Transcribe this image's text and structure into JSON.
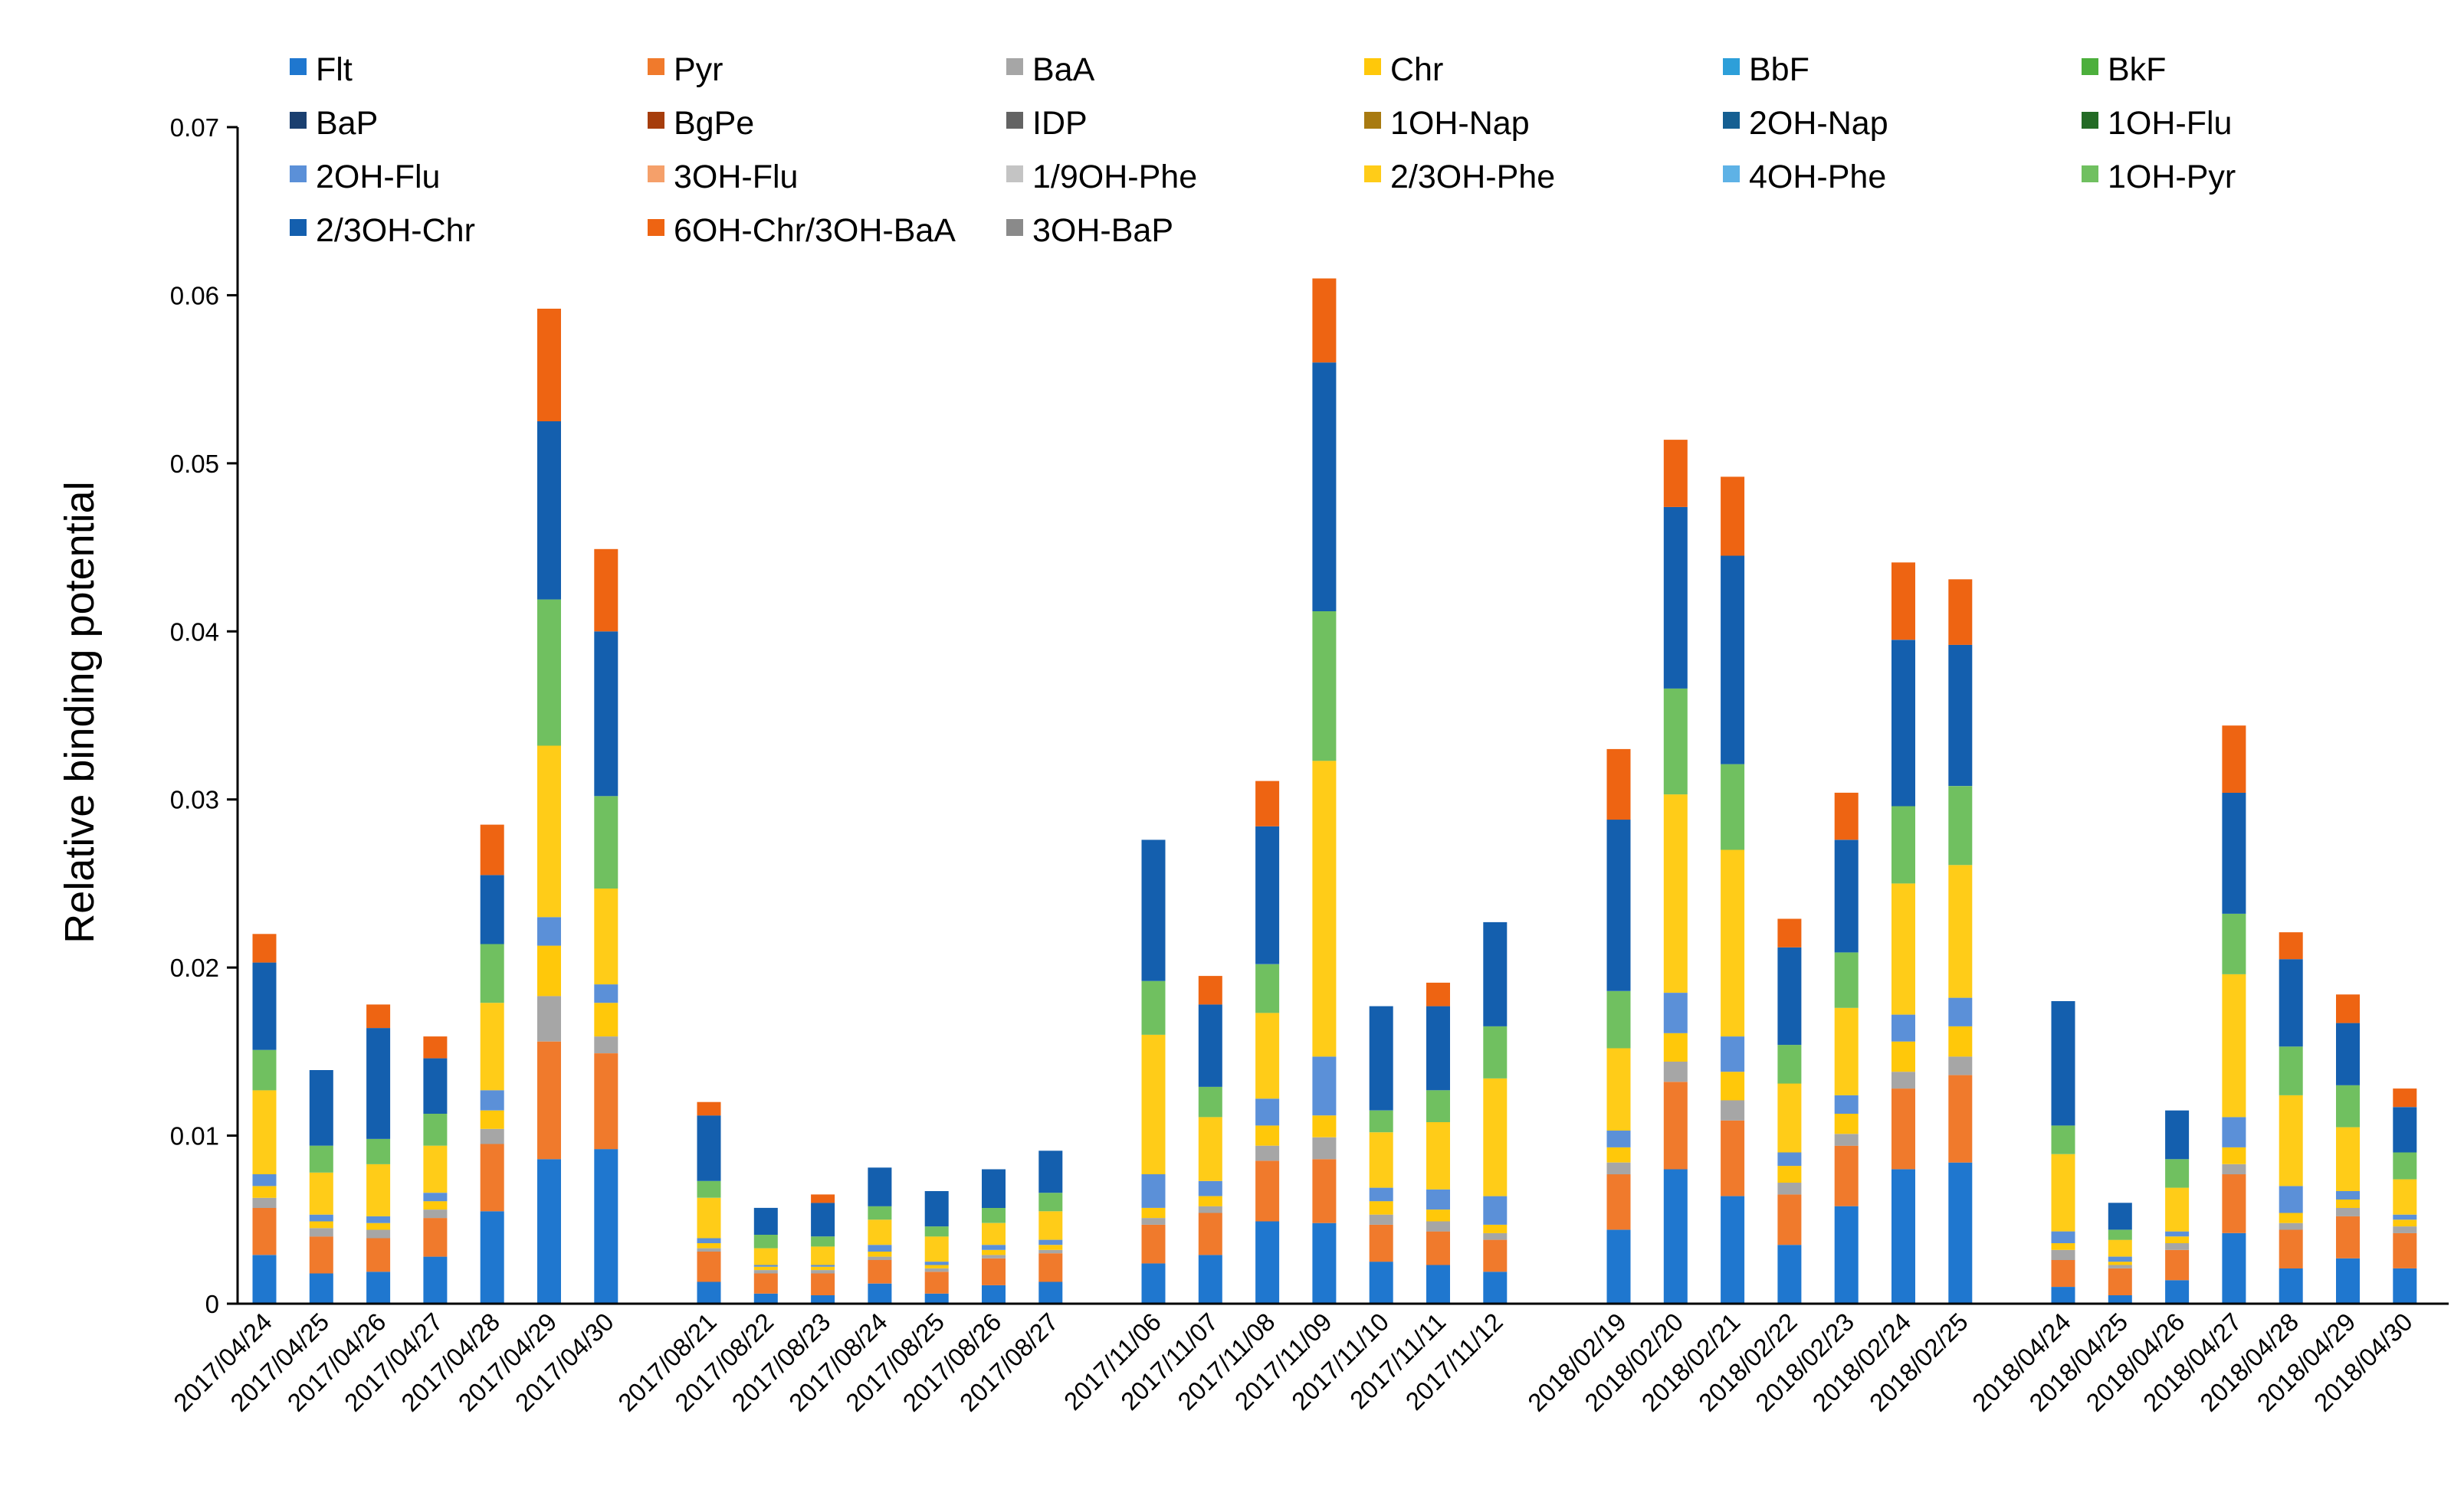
{
  "chart_data": {
    "type": "bar",
    "stacked": true,
    "title": "",
    "xlabel": "",
    "ylabel": "Relative binding potential",
    "ylim": [
      0,
      0.07
    ],
    "yticks": [
      "0",
      "0.01",
      "0.02",
      "0.03",
      "0.04",
      "0.05",
      "0.06",
      "0.07"
    ],
    "grid": false,
    "legend_position": "top",
    "colors": {
      "Flt": "#1f77cf",
      "Pyr": "#f07a2c",
      "BaA": "#a6a6a6",
      "Chr": "#ffc80a",
      "BbF": "#2d9fd9",
      "BkF": "#4caf3c",
      "BaP": "#1a3f70",
      "BgPe": "#a63d0c",
      "IDP": "#636363",
      "1OH-Nap": "#a87a10",
      "2OH-Nap": "#155f92",
      "1OH-Flu": "#236b25",
      "2OH-Flu": "#5b90d8",
      "3OH-Flu": "#f5a06a",
      "1/9OH-Phe": "#c4c4c4",
      "2/3OH-Phe": "#ffcc18",
      "4OH-Phe": "#5eb2e6",
      "1OH-Pyr": "#70c060",
      "2/3OH-Chr": "#145fae",
      "6OH-Chr/3OH-BaA": "#ee6412",
      "3OH-BaP": "#8a8a8a"
    },
    "legend": [
      "Flt",
      "Pyr",
      "BaA",
      "Chr",
      "BbF",
      "BkF",
      "BaP",
      "BgPe",
      "IDP",
      "1OH-Nap",
      "2OH-Nap",
      "1OH-Flu",
      "2OH-Flu",
      "3OH-Flu",
      "1/9OH-Phe",
      "2/3OH-Phe",
      "4OH-Phe",
      "1OH-Pyr",
      "2/3OH-Chr",
      "6OH-Chr/3OH-BaA",
      "3OH-BaP"
    ],
    "groups": [
      {
        "categories": [
          "2017/04/24",
          "2017/04/25",
          "2017/04/26",
          "2017/04/27",
          "2017/04/28",
          "2017/04/29",
          "2017/04/30"
        ]
      },
      {
        "categories": [
          "2017/08/21",
          "2017/08/22",
          "2017/08/23",
          "2017/08/24",
          "2017/08/25",
          "2017/08/26",
          "2017/08/27"
        ]
      },
      {
        "categories": [
          "2017/11/06",
          "2017/11/07",
          "2017/11/08",
          "2017/11/09",
          "2017/11/10",
          "2017/11/11",
          "2017/11/12"
        ]
      },
      {
        "categories": [
          "2018/02/19",
          "2018/02/20",
          "2018/02/21",
          "2018/02/22",
          "2018/02/23",
          "2018/02/24",
          "2018/02/25"
        ]
      },
      {
        "categories": [
          "2018/04/24",
          "2018/04/25",
          "2018/04/26",
          "2018/04/27",
          "2018/04/28",
          "2018/04/29",
          "2018/04/30"
        ]
      }
    ],
    "series": [
      {
        "name": "Flt",
        "values": [
          0.0029,
          0.0018,
          0.0019,
          0.0028,
          0.0055,
          0.0086,
          0.0092,
          0.0013,
          0.0006,
          0.0005,
          0.0012,
          0.0006,
          0.0011,
          0.0013,
          0.0024,
          0.0029,
          0.0049,
          0.0048,
          0.0025,
          0.0023,
          0.0019,
          0.0044,
          0.008,
          0.0064,
          0.0035,
          0.0058,
          0.008,
          0.0084,
          0.001,
          0.0005,
          0.0014,
          0.0042,
          0.0021,
          0.0027,
          0.0021
        ]
      },
      {
        "name": "Pyr",
        "values": [
          0.0028,
          0.0022,
          0.002,
          0.0023,
          0.004,
          0.007,
          0.0057,
          0.0018,
          0.0012,
          0.0013,
          0.0014,
          0.0013,
          0.0016,
          0.0017,
          0.0023,
          0.0025,
          0.0036,
          0.0038,
          0.0022,
          0.002,
          0.0019,
          0.0033,
          0.0052,
          0.0045,
          0.003,
          0.0036,
          0.0048,
          0.0052,
          0.0016,
          0.0016,
          0.0018,
          0.0035,
          0.0023,
          0.0025,
          0.0021
        ]
      },
      {
        "name": "BaA",
        "values": [
          0.0006,
          0.0005,
          0.0005,
          0.0005,
          0.0009,
          0.0027,
          0.001,
          0.0002,
          0.0002,
          0.0002,
          0.0002,
          0.0002,
          0.0002,
          0.0002,
          0.0004,
          0.0004,
          0.0009,
          0.0013,
          0.0006,
          0.0006,
          0.0004,
          0.0007,
          0.0012,
          0.0012,
          0.0007,
          0.0007,
          0.001,
          0.0011,
          0.0006,
          0.0002,
          0.0004,
          0.0006,
          0.0004,
          0.0005,
          0.0004
        ]
      },
      {
        "name": "Chr",
        "values": [
          0.0007,
          0.0004,
          0.0004,
          0.0005,
          0.0011,
          0.003,
          0.002,
          0.0003,
          0.0002,
          0.0002,
          0.0003,
          0.0002,
          0.0003,
          0.0003,
          0.0006,
          0.0006,
          0.0012,
          0.0013,
          0.0008,
          0.0007,
          0.0005,
          0.0009,
          0.0017,
          0.0017,
          0.001,
          0.0012,
          0.0018,
          0.0018,
          0.0004,
          0.0002,
          0.0004,
          0.001,
          0.0006,
          0.0005,
          0.0004
        ]
      },
      {
        "name": "BbF",
        "values": [
          0,
          0,
          0,
          0,
          0,
          0,
          0,
          0,
          0,
          0,
          0,
          0,
          0,
          0,
          0,
          0,
          0,
          0,
          0,
          0,
          0,
          0,
          0,
          0,
          0,
          0,
          0,
          0,
          0,
          0,
          0,
          0,
          0,
          0,
          0
        ]
      },
      {
        "name": "BkF",
        "values": [
          0,
          0,
          0,
          0,
          0,
          0,
          0,
          0,
          0,
          0,
          0,
          0,
          0,
          0,
          0,
          0,
          0,
          0,
          0,
          0,
          0,
          0,
          0,
          0,
          0,
          0,
          0,
          0,
          0,
          0,
          0,
          0,
          0,
          0,
          0
        ]
      },
      {
        "name": "BaP",
        "values": [
          0,
          0,
          0,
          0,
          0,
          0,
          0,
          0,
          0,
          0,
          0,
          0,
          0,
          0,
          0,
          0,
          0,
          0,
          0,
          0,
          0,
          0,
          0,
          0,
          0,
          0,
          0,
          0,
          0,
          0,
          0,
          0,
          0,
          0,
          0
        ]
      },
      {
        "name": "BgPe",
        "values": [
          0,
          0,
          0,
          0,
          0,
          0,
          0,
          0,
          0,
          0,
          0,
          0,
          0,
          0,
          0,
          0,
          0,
          0,
          0,
          0,
          0,
          0,
          0,
          0,
          0,
          0,
          0,
          0,
          0,
          0,
          0,
          0,
          0,
          0,
          0
        ]
      },
      {
        "name": "IDP",
        "values": [
          0,
          0,
          0,
          0,
          0,
          0,
          0,
          0,
          0,
          0,
          0,
          0,
          0,
          0,
          0,
          0,
          0,
          0,
          0,
          0,
          0,
          0,
          0,
          0,
          0,
          0,
          0,
          0,
          0,
          0,
          0,
          0,
          0,
          0,
          0
        ]
      },
      {
        "name": "1OH-Nap",
        "values": [
          0,
          0,
          0,
          0,
          0,
          0,
          0,
          0,
          0,
          0,
          0,
          0,
          0,
          0,
          0,
          0,
          0,
          0,
          0,
          0,
          0,
          0,
          0,
          0,
          0,
          0,
          0,
          0,
          0,
          0,
          0,
          0,
          0,
          0,
          0
        ]
      },
      {
        "name": "2OH-Nap",
        "values": [
          0,
          0,
          0,
          0,
          0,
          0,
          0,
          0,
          0,
          0,
          0,
          0,
          0,
          0,
          0,
          0,
          0,
          0,
          0,
          0,
          0,
          0,
          0,
          0,
          0,
          0,
          0,
          0,
          0,
          0,
          0,
          0,
          0,
          0,
          0
        ]
      },
      {
        "name": "1OH-Flu",
        "values": [
          0,
          0,
          0,
          0,
          0,
          0,
          0,
          0,
          0,
          0,
          0,
          0,
          0,
          0,
          0,
          0,
          0,
          0,
          0,
          0,
          0,
          0,
          0,
          0,
          0,
          0,
          0,
          0,
          0,
          0,
          0,
          0,
          0,
          0,
          0
        ]
      },
      {
        "name": "2OH-Flu",
        "values": [
          0.0007,
          0.0004,
          0.0004,
          0.0005,
          0.0012,
          0.0017,
          0.0011,
          0.0003,
          0.0001,
          0.0001,
          0.0004,
          0.0002,
          0.0003,
          0.0003,
          0.002,
          0.0009,
          0.0016,
          0.0035,
          0.0008,
          0.0012,
          0.0017,
          0.001,
          0.0024,
          0.0021,
          0.0008,
          0.0011,
          0.0016,
          0.0017,
          0.0007,
          0.0003,
          0.0003,
          0.0018,
          0.0016,
          0.0005,
          0.0003
        ]
      },
      {
        "name": "3OH-Flu",
        "values": [
          0,
          0,
          0,
          0,
          0,
          0,
          0,
          0,
          0,
          0,
          0,
          0,
          0,
          0,
          0,
          0,
          0,
          0,
          0,
          0,
          0,
          0,
          0,
          0,
          0,
          0,
          0,
          0,
          0,
          0,
          0,
          0,
          0,
          0,
          0
        ]
      },
      {
        "name": "1/9OH-Phe",
        "values": [
          0,
          0,
          0,
          0,
          0,
          0,
          0,
          0,
          0,
          0,
          0,
          0,
          0,
          0,
          0,
          0,
          0,
          0,
          0,
          0,
          0,
          0,
          0,
          0,
          0,
          0,
          0,
          0,
          0,
          0,
          0,
          0,
          0,
          0,
          0
        ]
      },
      {
        "name": "2/3OH-Phe",
        "values": [
          0.005,
          0.0025,
          0.0031,
          0.0028,
          0.0052,
          0.0102,
          0.0057,
          0.0024,
          0.001,
          0.0011,
          0.0015,
          0.0015,
          0.0013,
          0.0017,
          0.0083,
          0.0038,
          0.0051,
          0.0176,
          0.0033,
          0.004,
          0.007,
          0.0049,
          0.0118,
          0.0111,
          0.0041,
          0.0052,
          0.0078,
          0.0079,
          0.0046,
          0.001,
          0.0026,
          0.0085,
          0.0054,
          0.0038,
          0.0021
        ]
      },
      {
        "name": "4OH-Phe",
        "values": [
          0,
          0,
          0,
          0,
          0,
          0,
          0,
          0,
          0,
          0,
          0,
          0,
          0,
          0,
          0,
          0,
          0,
          0,
          0,
          0,
          0,
          0,
          0,
          0,
          0,
          0,
          0,
          0,
          0,
          0,
          0,
          0,
          0,
          0,
          0
        ]
      },
      {
        "name": "1OH-Pyr",
        "values": [
          0.0024,
          0.0016,
          0.0015,
          0.0019,
          0.0035,
          0.0087,
          0.0055,
          0.001,
          0.0008,
          0.0006,
          0.0008,
          0.0006,
          0.0009,
          0.0011,
          0.0032,
          0.0018,
          0.0029,
          0.0089,
          0.0013,
          0.0019,
          0.0031,
          0.0034,
          0.0063,
          0.0051,
          0.0023,
          0.0033,
          0.0046,
          0.0047,
          0.0017,
          0.0006,
          0.0017,
          0.0036,
          0.0029,
          0.0025,
          0.0016
        ]
      },
      {
        "name": "2/3OH-Chr",
        "values": [
          0.0052,
          0.0045,
          0.0066,
          0.0033,
          0.0041,
          0.0106,
          0.0098,
          0.0039,
          0.0016,
          0.002,
          0.0023,
          0.0021,
          0.0023,
          0.0025,
          0.0084,
          0.0049,
          0.0082,
          0.0148,
          0.0062,
          0.005,
          0.0062,
          0.0102,
          0.0108,
          0.0124,
          0.0058,
          0.0067,
          0.0099,
          0.0084,
          0.0074,
          0.0016,
          0.0029,
          0.0072,
          0.0052,
          0.0037,
          0.0027
        ]
      },
      {
        "name": "6OH-Chr/3OH-BaA",
        "values": [
          0.0017,
          0,
          0.0014,
          0.0013,
          0.003,
          0.0067,
          0.0049,
          0.0008,
          0,
          0.0005,
          0,
          0,
          0,
          0,
          0,
          0.0017,
          0.0027,
          0.005,
          0,
          0.0014,
          0,
          0.0042,
          0.004,
          0.0047,
          0.0017,
          0.0028,
          0.0046,
          0.0039,
          0,
          0,
          0,
          0.004,
          0.0016,
          0.0017,
          0.0011
        ]
      },
      {
        "name": "3OH-BaP",
        "values": [
          0,
          0,
          0,
          0,
          0,
          0,
          0,
          0,
          0,
          0,
          0,
          0,
          0,
          0,
          0,
          0,
          0,
          0,
          0,
          0,
          0,
          0,
          0,
          0,
          0,
          0,
          0,
          0,
          0,
          0,
          0,
          0,
          0,
          0,
          0
        ]
      }
    ]
  }
}
